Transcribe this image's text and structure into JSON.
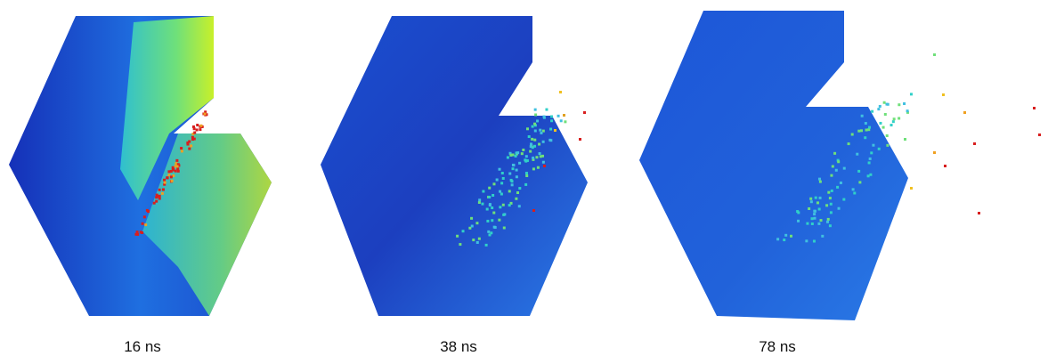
{
  "panels": [
    {
      "label": "16 ns"
    },
    {
      "label": "38 ns"
    },
    {
      "label": "78 ns"
    }
  ]
}
